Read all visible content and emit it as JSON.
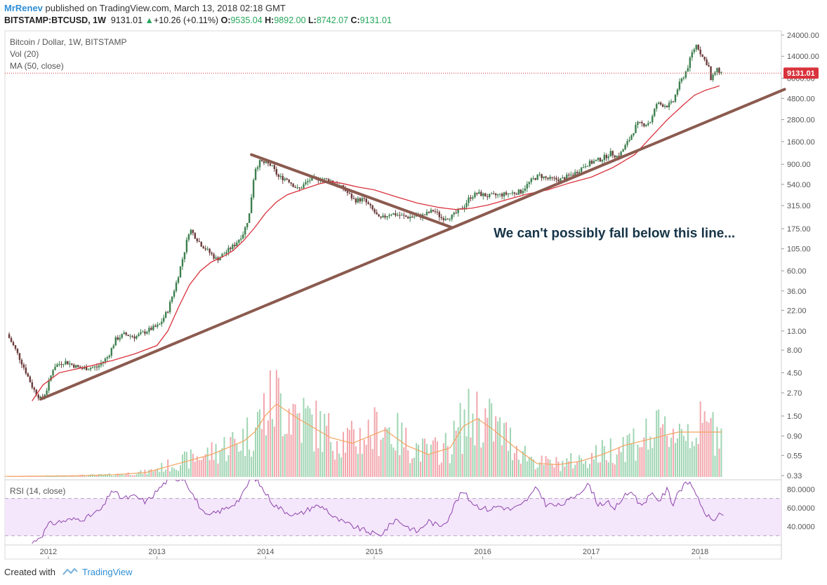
{
  "header": {
    "author": "MrRenev",
    "published": "published on TradingView.com, March 13, 2018 02:18 GMT",
    "symbol": "BITSTAMP:BTCUSD, 1W",
    "last": "9131.01",
    "arrow": "▲",
    "change": "+10.26 (+0.11%)",
    "o_label": "O:",
    "o_value": "9535.04",
    "h_label": "H:",
    "h_value": "9892.00",
    "l_label": "L:",
    "l_value": "8742.07",
    "c_label": "C:",
    "c_value": "9131.01"
  },
  "legends": {
    "title": "Bitcoin / Dollar, 1W, BITSTAMP",
    "vol": "Vol (20)",
    "ma": "MA (50, close)",
    "rsi": "RSI (14, close)"
  },
  "footer": {
    "created_with": "Created with",
    "brand": "TradingView"
  },
  "colors": {
    "trendline": "#8b5a4f",
    "ma": "#d9323c",
    "candle_up": "#3d7f4e",
    "candle_down": "#6b3a3a",
    "vol_up": "#9fd5b3",
    "vol_down": "#f2a7ad",
    "vol_ma": "#f4a460",
    "rsi": "#8e44ad",
    "rsi_band": "#f4e6fb",
    "price_tag": "#d9323c",
    "annotation": "#163447"
  },
  "chart_data": {
    "type": "candlestick",
    "title": "Bitcoin / Dollar, 1W, BITSTAMP",
    "scale": "log",
    "last_price": 9131.01,
    "last_price_label": "9131.01",
    "annotation": "We can't possibly fall below this line...",
    "x_ticks": [
      "2012",
      "2013",
      "2014",
      "2015",
      "2016",
      "2017",
      "2018"
    ],
    "x_tick_years": [
      2012,
      2013,
      2014,
      2015,
      2016,
      2017,
      2018
    ],
    "x_range": [
      2011.6,
      2018.75
    ],
    "y_ticks": [
      "24000.00",
      "14000.00",
      "8000.00",
      "4800.00",
      "2800.00",
      "1600.00",
      "900.00",
      "540.00",
      "315.00",
      "175.00",
      "105.00",
      "60.00",
      "36.00",
      "22.00",
      "13.00",
      "8.00",
      "4.50",
      "2.70",
      "1.50",
      "0.90",
      "0.55",
      "0.33"
    ],
    "y_tick_values": [
      24000,
      14000,
      8000,
      4800,
      2800,
      1600,
      900,
      540,
      315,
      175,
      105,
      60,
      36,
      22,
      13,
      8,
      4.5,
      2.7,
      1.5,
      0.9,
      0.55,
      0.33
    ],
    "price_path": [
      [
        2011.62,
        12
      ],
      [
        2011.7,
        8
      ],
      [
        2011.78,
        5
      ],
      [
        2011.86,
        3
      ],
      [
        2011.93,
        2.3
      ],
      [
        2011.98,
        2.8
      ],
      [
        2012.05,
        5.3
      ],
      [
        2012.15,
        6
      ],
      [
        2012.3,
        5
      ],
      [
        2012.45,
        5.2
      ],
      [
        2012.55,
        6.8
      ],
      [
        2012.62,
        10.5
      ],
      [
        2012.7,
        12
      ],
      [
        2012.8,
        11.2
      ],
      [
        2012.92,
        13.3
      ],
      [
        2013.02,
        15
      ],
      [
        2013.1,
        22
      ],
      [
        2013.18,
        45
      ],
      [
        2013.25,
        95
      ],
      [
        2013.3,
        175
      ],
      [
        2013.4,
        120
      ],
      [
        2013.55,
        80
      ],
      [
        2013.65,
        100
      ],
      [
        2013.72,
        118
      ],
      [
        2013.8,
        160
      ],
      [
        2013.85,
        250
      ],
      [
        2013.9,
        800
      ],
      [
        2013.95,
        960
      ],
      [
        2014.05,
        880
      ],
      [
        2014.12,
        650
      ],
      [
        2014.2,
        620
      ],
      [
        2014.3,
        470
      ],
      [
        2014.4,
        600
      ],
      [
        2014.5,
        630
      ],
      [
        2014.6,
        590
      ],
      [
        2014.72,
        480
      ],
      [
        2014.82,
        360
      ],
      [
        2014.9,
        370
      ],
      [
        2015.0,
        270
      ],
      [
        2015.05,
        220
      ],
      [
        2015.15,
        260
      ],
      [
        2015.3,
        235
      ],
      [
        2015.45,
        245
      ],
      [
        2015.55,
        280
      ],
      [
        2015.62,
        230
      ],
      [
        2015.72,
        240
      ],
      [
        2015.82,
        300
      ],
      [
        2015.88,
        390
      ],
      [
        2015.95,
        430
      ],
      [
        2016.05,
        400
      ],
      [
        2016.2,
        420
      ],
      [
        2016.35,
        450
      ],
      [
        2016.45,
        600
      ],
      [
        2016.52,
        680
      ],
      [
        2016.6,
        620
      ],
      [
        2016.72,
        610
      ],
      [
        2016.85,
        720
      ],
      [
        2016.95,
        900
      ],
      [
        2017.02,
        960
      ],
      [
        2017.1,
        1040
      ],
      [
        2017.18,
        1200
      ],
      [
        2017.25,
        1080
      ],
      [
        2017.35,
        1700
      ],
      [
        2017.42,
        2500
      ],
      [
        2017.5,
        2500
      ],
      [
        2017.55,
        2700
      ],
      [
        2017.6,
        4200
      ],
      [
        2017.7,
        4000
      ],
      [
        2017.75,
        4300
      ],
      [
        2017.8,
        6500
      ],
      [
        2017.88,
        10000
      ],
      [
        2017.93,
        15500
      ],
      [
        2017.97,
        19000
      ],
      [
        2018.02,
        14000
      ],
      [
        2018.08,
        11000
      ],
      [
        2018.1,
        7500
      ],
      [
        2018.15,
        10000
      ],
      [
        2018.2,
        9131
      ]
    ],
    "ma_path": [
      [
        2011.85,
        2.2
      ],
      [
        2011.95,
        3.3
      ],
      [
        2012.1,
        4.5
      ],
      [
        2012.4,
        5.4
      ],
      [
        2012.6,
        6.2
      ],
      [
        2012.8,
        7.3
      ],
      [
        2013.0,
        9.0
      ],
      [
        2013.1,
        13
      ],
      [
        2013.2,
        24
      ],
      [
        2013.3,
        42
      ],
      [
        2013.4,
        60
      ],
      [
        2013.5,
        75
      ],
      [
        2013.6,
        85
      ],
      [
        2013.7,
        100
      ],
      [
        2013.8,
        130
      ],
      [
        2013.9,
        180
      ],
      [
        2014.0,
        260
      ],
      [
        2014.1,
        345
      ],
      [
        2014.2,
        415
      ],
      [
        2014.35,
        480
      ],
      [
        2014.5,
        550
      ],
      [
        2014.6,
        580
      ],
      [
        2014.7,
        555
      ],
      [
        2014.85,
        505
      ],
      [
        2015.0,
        470
      ],
      [
        2015.2,
        395
      ],
      [
        2015.4,
        335
      ],
      [
        2015.6,
        300
      ],
      [
        2015.75,
        285
      ],
      [
        2015.9,
        295
      ],
      [
        2016.05,
        320
      ],
      [
        2016.2,
        360
      ],
      [
        2016.4,
        420
      ],
      [
        2016.6,
        470
      ],
      [
        2016.8,
        560
      ],
      [
        2017.0,
        650
      ],
      [
        2017.2,
        830
      ],
      [
        2017.4,
        1150
      ],
      [
        2017.55,
        1800
      ],
      [
        2017.7,
        2800
      ],
      [
        2017.85,
        4100
      ],
      [
        2017.95,
        5200
      ],
      [
        2018.05,
        5900
      ],
      [
        2018.18,
        6600
      ]
    ],
    "trendlines": [
      {
        "name": "support",
        "from": [
          2011.93,
          2.3
        ],
        "to": [
          2018.78,
          6050
        ]
      },
      {
        "name": "resistance",
        "from": [
          2013.87,
          1150
        ],
        "to": [
          2015.72,
          180
        ]
      }
    ],
    "volume": {
      "y_max": 1.0,
      "ma_path": [
        [
          2011.6,
          0.005
        ],
        [
          2012.2,
          0.01
        ],
        [
          2012.6,
          0.02
        ],
        [
          2012.9,
          0.04
        ],
        [
          2013.2,
          0.12
        ],
        [
          2013.5,
          0.2
        ],
        [
          2013.8,
          0.32
        ],
        [
          2013.9,
          0.4
        ],
        [
          2014.0,
          0.55
        ],
        [
          2014.1,
          0.65
        ],
        [
          2014.3,
          0.52
        ],
        [
          2014.6,
          0.35
        ],
        [
          2014.8,
          0.3
        ],
        [
          2015.0,
          0.38
        ],
        [
          2015.1,
          0.42
        ],
        [
          2015.3,
          0.28
        ],
        [
          2015.5,
          0.2
        ],
        [
          2015.7,
          0.26
        ],
        [
          2015.82,
          0.45
        ],
        [
          2015.95,
          0.52
        ],
        [
          2016.1,
          0.42
        ],
        [
          2016.3,
          0.26
        ],
        [
          2016.5,
          0.12
        ],
        [
          2016.7,
          0.11
        ],
        [
          2016.9,
          0.14
        ],
        [
          2017.1,
          0.2
        ],
        [
          2017.3,
          0.28
        ],
        [
          2017.55,
          0.34
        ],
        [
          2017.8,
          0.4
        ],
        [
          2018.0,
          0.4
        ],
        [
          2018.2,
          0.4
        ]
      ]
    },
    "rsi": {
      "title": "RSI (14, close)",
      "y_ticks": [
        "80.0000",
        "60.0000",
        "40.0000"
      ],
      "y_tick_values": [
        80,
        60,
        40
      ],
      "band": [
        30,
        70
      ],
      "path": [
        [
          2011.85,
          22
        ],
        [
          2011.95,
          32
        ],
        [
          2012.0,
          42
        ],
        [
          2012.1,
          45
        ],
        [
          2012.2,
          47
        ],
        [
          2012.35,
          49
        ],
        [
          2012.5,
          59
        ],
        [
          2012.58,
          79
        ],
        [
          2012.68,
          70
        ],
        [
          2012.8,
          72
        ],
        [
          2012.9,
          66
        ],
        [
          2013.0,
          78
        ],
        [
          2013.1,
          90
        ],
        [
          2013.25,
          92
        ],
        [
          2013.35,
          70
        ],
        [
          2013.45,
          50
        ],
        [
          2013.55,
          55
        ],
        [
          2013.65,
          60
        ],
        [
          2013.75,
          68
        ],
        [
          2013.8,
          76
        ],
        [
          2013.88,
          96
        ],
        [
          2013.98,
          79
        ],
        [
          2014.08,
          63
        ],
        [
          2014.2,
          55
        ],
        [
          2014.3,
          52
        ],
        [
          2014.45,
          62
        ],
        [
          2014.55,
          60
        ],
        [
          2014.62,
          50
        ],
        [
          2014.72,
          44
        ],
        [
          2014.85,
          38
        ],
        [
          2014.95,
          34
        ],
        [
          2015.05,
          30
        ],
        [
          2015.12,
          38
        ],
        [
          2015.2,
          48
        ],
        [
          2015.3,
          40
        ],
        [
          2015.4,
          34
        ],
        [
          2015.5,
          46
        ],
        [
          2015.6,
          40
        ],
        [
          2015.68,
          48
        ],
        [
          2015.75,
          66
        ],
        [
          2015.82,
          78
        ],
        [
          2015.88,
          68
        ],
        [
          2015.95,
          62
        ],
        [
          2016.05,
          58
        ],
        [
          2016.15,
          62
        ],
        [
          2016.25,
          58
        ],
        [
          2016.35,
          62
        ],
        [
          2016.45,
          74
        ],
        [
          2016.5,
          82
        ],
        [
          2016.58,
          64
        ],
        [
          2016.7,
          62
        ],
        [
          2016.8,
          68
        ],
        [
          2016.9,
          78
        ],
        [
          2016.98,
          85
        ],
        [
          2017.06,
          64
        ],
        [
          2017.15,
          66
        ],
        [
          2017.2,
          57
        ],
        [
          2017.3,
          72
        ],
        [
          2017.38,
          78
        ],
        [
          2017.45,
          62
        ],
        [
          2017.55,
          74
        ],
        [
          2017.63,
          68
        ],
        [
          2017.7,
          80
        ],
        [
          2017.75,
          63
        ],
        [
          2017.8,
          78
        ],
        [
          2017.9,
          88
        ],
        [
          2017.96,
          78
        ],
        [
          2018.0,
          62
        ],
        [
          2018.08,
          50
        ],
        [
          2018.12,
          46
        ],
        [
          2018.18,
          54
        ],
        [
          2018.22,
          48
        ]
      ]
    }
  }
}
